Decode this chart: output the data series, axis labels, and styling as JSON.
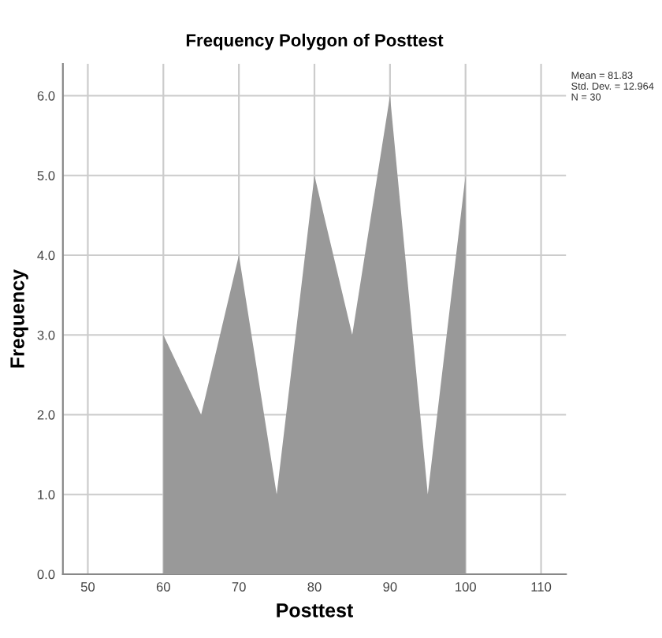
{
  "chart_data": {
    "type": "area",
    "title": "Frequency Polygon of Posttest",
    "xlabel": "Posttest",
    "ylabel": "Frequency",
    "x": [
      60,
      65,
      70,
      75,
      80,
      85,
      90,
      95,
      100
    ],
    "series": [
      {
        "color": "#999999",
        "values": [
          3,
          2,
          4,
          1,
          5,
          3,
          6,
          1,
          5
        ]
      }
    ],
    "xlim": [
      46.7,
      113.3
    ],
    "xticks": [
      50,
      60,
      70,
      80,
      90,
      100,
      110
    ],
    "ylim": [
      0,
      6.4
    ],
    "yticks": [
      {
        "value": 0,
        "label": "0.0"
      },
      {
        "value": 1,
        "label": "1.0"
      },
      {
        "value": 2,
        "label": "2.0"
      },
      {
        "value": 3,
        "label": "3.0"
      },
      {
        "value": 4,
        "label": "4.0"
      },
      {
        "value": 5,
        "label": "5.0"
      },
      {
        "value": 6,
        "label": "6.0"
      }
    ],
    "grid": true,
    "annotations": [
      "Mean = 81.83",
      "Std. Dev. = 12.964",
      "N = 30"
    ]
  }
}
